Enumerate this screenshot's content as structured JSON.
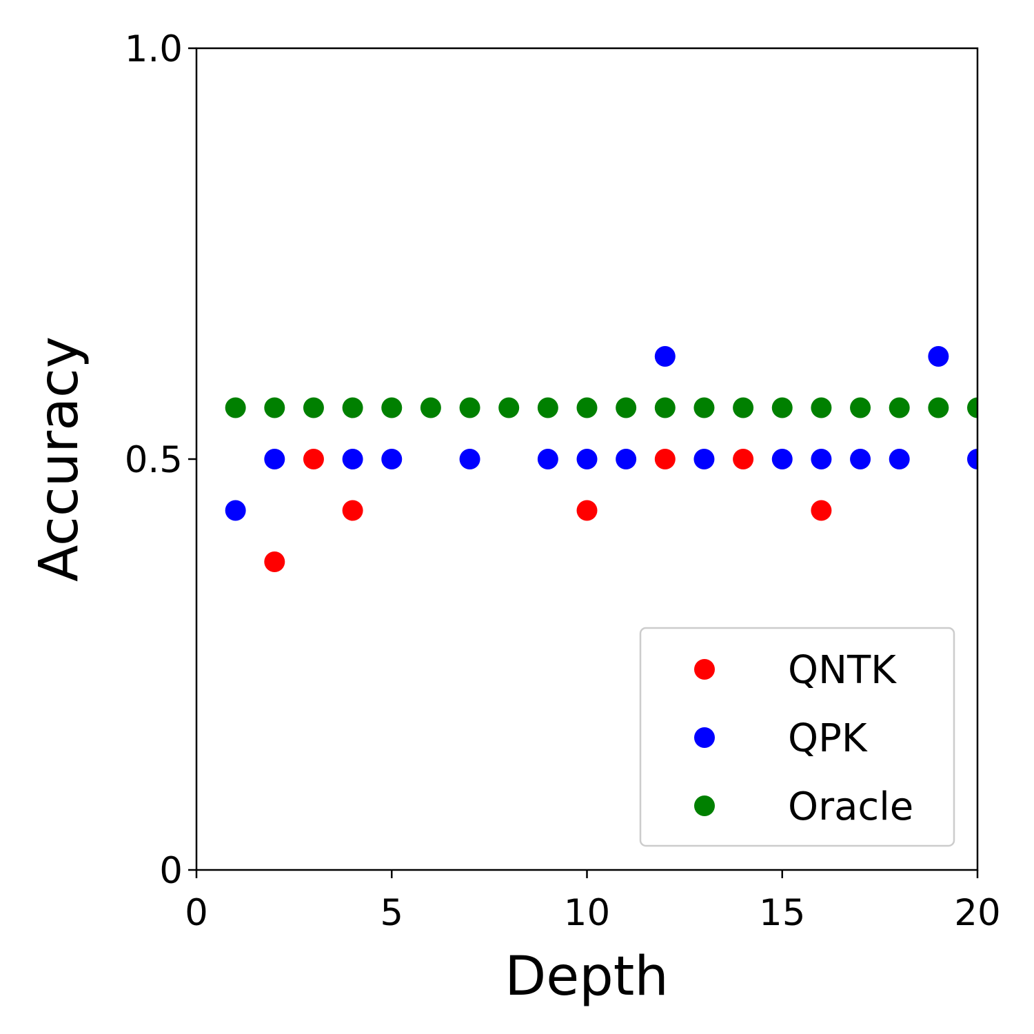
{
  "chart_data": {
    "type": "scatter",
    "xlabel": "Depth",
    "ylabel": "Accuracy",
    "xlim": [
      0,
      20
    ],
    "ylim": [
      0,
      1.0
    ],
    "x_ticks": [
      0,
      5,
      10,
      15,
      20
    ],
    "x_tick_labels": [
      "0",
      "5",
      "10",
      "15",
      "20"
    ],
    "y_ticks": [
      0,
      0.5,
      1.0
    ],
    "y_tick_labels": [
      "0",
      "0.5",
      "1.0"
    ],
    "grid": false,
    "legend_position": "bottom-right",
    "series": [
      {
        "name": "QNTK",
        "color": "#ff0000",
        "points": [
          [
            2,
            0.375
          ],
          [
            3,
            0.5
          ],
          [
            4,
            0.4375
          ],
          [
            10,
            0.4375
          ],
          [
            12,
            0.5
          ],
          [
            14,
            0.5
          ],
          [
            16,
            0.4375
          ]
        ]
      },
      {
        "name": "QPK",
        "color": "#0000ff",
        "points": [
          [
            1,
            0.4375
          ],
          [
            2,
            0.5
          ],
          [
            4,
            0.5
          ],
          [
            5,
            0.5
          ],
          [
            7,
            0.5
          ],
          [
            9,
            0.5
          ],
          [
            10,
            0.5
          ],
          [
            11,
            0.5
          ],
          [
            12,
            0.625
          ],
          [
            13,
            0.5
          ],
          [
            15,
            0.5
          ],
          [
            16,
            0.5
          ],
          [
            17,
            0.5
          ],
          [
            18,
            0.5
          ],
          [
            19,
            0.625
          ],
          [
            20,
            0.5
          ]
        ]
      },
      {
        "name": "Oracle",
        "color": "#008000",
        "points": [
          [
            1,
            0.5625
          ],
          [
            2,
            0.5625
          ],
          [
            3,
            0.5625
          ],
          [
            4,
            0.5625
          ],
          [
            5,
            0.5625
          ],
          [
            6,
            0.5625
          ],
          [
            7,
            0.5625
          ],
          [
            8,
            0.5625
          ],
          [
            9,
            0.5625
          ],
          [
            10,
            0.5625
          ],
          [
            11,
            0.5625
          ],
          [
            12,
            0.5625
          ],
          [
            13,
            0.5625
          ],
          [
            14,
            0.5625
          ],
          [
            15,
            0.5625
          ],
          [
            16,
            0.5625
          ],
          [
            17,
            0.5625
          ],
          [
            18,
            0.5625
          ],
          [
            19,
            0.5625
          ],
          [
            20,
            0.5625
          ]
        ]
      }
    ]
  }
}
